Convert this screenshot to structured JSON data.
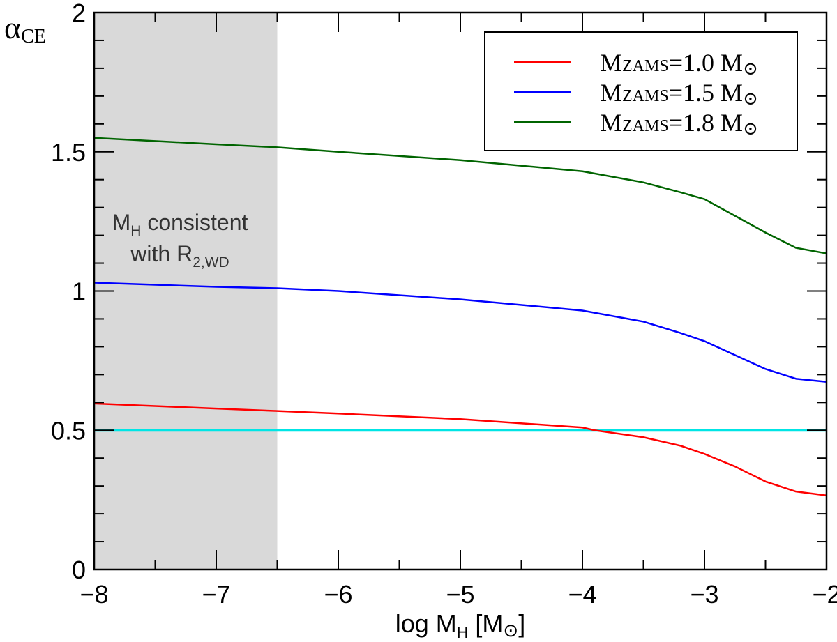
{
  "chart_data": {
    "type": "line",
    "xlabel": {
      "main": "log M",
      "sub": "H",
      "unit": " [M",
      "sun": "⊙",
      "close": "]"
    },
    "ylabel": {
      "main": "α",
      "sub": "CE"
    },
    "xlim": [
      -8,
      -2
    ],
    "ylim": [
      0,
      2
    ],
    "xticks": [
      -8,
      -7,
      -6,
      -5,
      -4,
      -3,
      -2
    ],
    "xtick_labels": [
      "−8",
      "−7",
      "−6",
      "−5",
      "−4",
      "−3",
      "−2"
    ],
    "yticks": [
      0,
      0.5,
      1,
      1.5,
      2
    ],
    "ytick_labels": [
      "0",
      "0.5",
      "1",
      "1.5",
      "2"
    ],
    "grid": false,
    "shaded_region": {
      "x": [
        -8,
        -6.5
      ],
      "color": "#d9d9d9"
    },
    "annotation": {
      "line1_main": "M",
      "line1_sub": "H",
      "line1_rest": " consistent",
      "line2_main": "with R",
      "line2_sub": "2,WD"
    },
    "reference_line": {
      "y": 0.5,
      "color": "#00e5e5"
    },
    "legend_position": "top-right",
    "series": [
      {
        "name": "MZAMS=1.0 M⊙",
        "label_main": "M",
        "label_sub": "ZAMS",
        "label_rest": "=1.0 M",
        "label_sun": "⊙",
        "color": "#ff0000",
        "x": [
          -8,
          -7,
          -6.5,
          -6,
          -5,
          -4,
          -3.9,
          -3.5,
          -3.2,
          -3,
          -2.75,
          -2.5,
          -2.25,
          -2
        ],
        "y": [
          0.596,
          0.578,
          0.569,
          0.56,
          0.54,
          0.51,
          0.5,
          0.475,
          0.445,
          0.415,
          0.37,
          0.316,
          0.28,
          0.266
        ]
      },
      {
        "name": "MZAMS=1.5 M⊙",
        "label_main": "M",
        "label_sub": "ZAMS",
        "label_rest": "=1.5 M",
        "label_sun": "⊙",
        "color": "#0000ff",
        "x": [
          -8,
          -7,
          -6.5,
          -6,
          -5,
          -4,
          -3.5,
          -3.2,
          -3,
          -2.75,
          -2.5,
          -2.25,
          -2
        ],
        "y": [
          1.03,
          1.015,
          1.01,
          1.0,
          0.97,
          0.93,
          0.89,
          0.85,
          0.82,
          0.77,
          0.72,
          0.685,
          0.674
        ]
      },
      {
        "name": "MZAMS=1.8 M⊙",
        "label_main": "M",
        "label_sub": "ZAMS",
        "label_rest": "=1.8 M",
        "label_sun": "⊙",
        "color": "#006400",
        "x": [
          -8,
          -7,
          -6.5,
          -6,
          -5,
          -4,
          -3.5,
          -3.2,
          -3,
          -2.75,
          -2.5,
          -2.25,
          -2
        ],
        "y": [
          1.55,
          1.527,
          1.516,
          1.5,
          1.47,
          1.43,
          1.39,
          1.355,
          1.33,
          1.27,
          1.21,
          1.155,
          1.135
        ]
      }
    ]
  }
}
